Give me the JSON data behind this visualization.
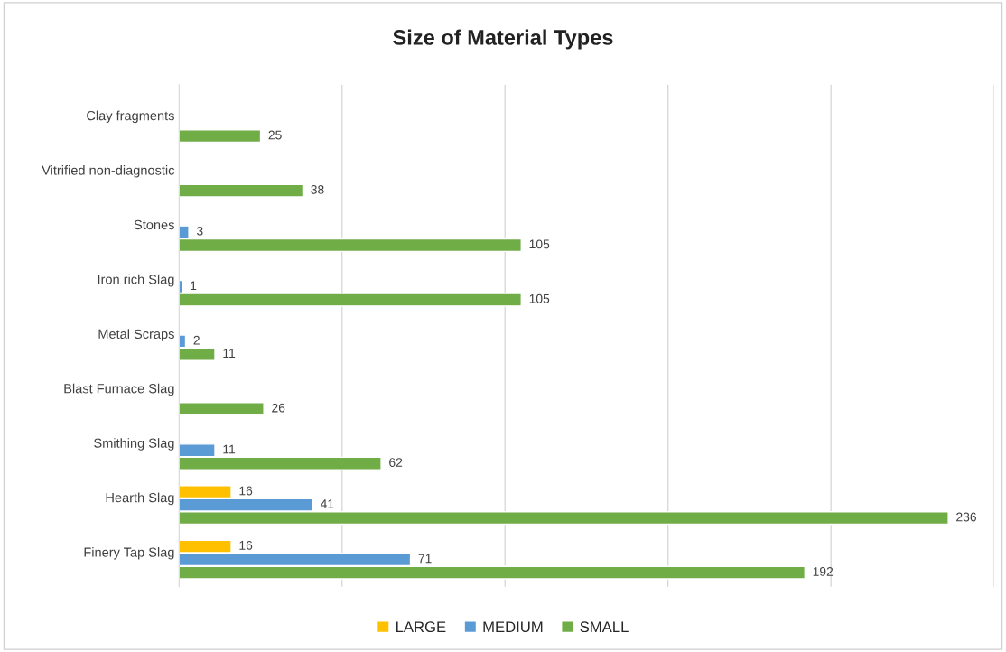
{
  "chart_data": {
    "type": "bar",
    "orientation": "horizontal",
    "title": "Size of Material Types",
    "categories": [
      "Clay fragments",
      "Vitrified non-diagnostic",
      "Stones",
      "Iron rich Slag",
      "Metal Scraps",
      "Blast Furnace Slag",
      "Smithing Slag",
      "Hearth Slag",
      "Finery Tap Slag"
    ],
    "series": [
      {
        "name": "LARGE",
        "color": "#ffc000",
        "values": [
          null,
          null,
          null,
          null,
          null,
          null,
          null,
          16,
          16
        ]
      },
      {
        "name": "MEDIUM",
        "color": "#5b9bd5",
        "values": [
          null,
          null,
          3,
          1,
          2,
          null,
          11,
          41,
          71
        ]
      },
      {
        "name": "SMALL",
        "color": "#70ad47",
        "values": [
          25,
          38,
          105,
          105,
          11,
          26,
          62,
          236,
          192
        ]
      }
    ],
    "xlim": [
      0,
      250
    ],
    "xticks": [
      {
        "value": 0,
        "label": null
      },
      {
        "value": 50,
        "label": null
      },
      {
        "value": 100,
        "label": null
      },
      {
        "value": 150,
        "label": null
      },
      {
        "value": 200,
        "label": null
      },
      {
        "value": 250,
        "label": null
      }
    ],
    "grid": "x",
    "legend": "bottom",
    "data_labels": true,
    "tick_labels": "y"
  }
}
